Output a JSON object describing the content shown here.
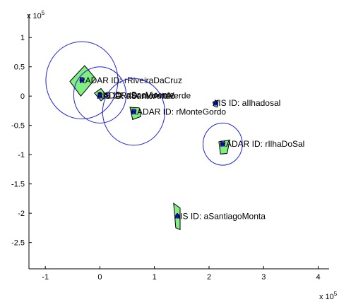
{
  "chart_data": {
    "type": "scatter",
    "xlim": [
      -1.3,
      4.2
    ],
    "ylim": [
      -2.95,
      1.4
    ],
    "x_ticks": [
      -1,
      0,
      1,
      2,
      3,
      4
    ],
    "y_ticks": [
      1,
      0.5,
      0,
      -0.5,
      -1,
      -1.5,
      -2,
      -2.5
    ],
    "x_tick_labels": [
      "-1",
      "0",
      "1",
      "2",
      "3",
      "4"
    ],
    "y_tick_labels": [
      "1",
      "0.5",
      "0",
      "-0.5",
      "-1",
      "-1.5",
      "-2",
      "-2.5"
    ],
    "x_exponent_label": "x 10",
    "x_exponent_power": "5",
    "y_exponent_label": "x 10",
    "y_exponent_power": "5",
    "grid": false,
    "colors": {
      "coverage_circle": "#2222dd",
      "sector_fill": "#80ee80",
      "sector_stroke": "#000000",
      "point": "#1a1aee"
    },
    "stations": [
      {
        "label": "RADAR ID: rRiveiraDaCruz",
        "x": -0.33,
        "y": 0.27,
        "radius": 0.66,
        "polygon": [
          [
            -0.55,
            0.25
          ],
          [
            -0.28,
            0.52
          ],
          [
            -0.08,
            0.3
          ],
          [
            -0.35,
            0.0
          ]
        ]
      },
      {
        "label": "AIS ID: aSaoVicente",
        "x": 0.0,
        "y": 0.02,
        "radius": 0.48,
        "polygon": [
          [
            -0.1,
            0.05
          ],
          [
            0.02,
            0.13
          ],
          [
            0.13,
            0.0
          ],
          [
            0.02,
            -0.08
          ]
        ]
      },
      {
        "label": "RADAR ID: rMonteVerde",
        "x": 0.0,
        "y": 0.01,
        "radius": 0.0,
        "polygon": []
      },
      {
        "label": "AIS ID: aSantoAntao",
        "x": 0.0,
        "y": 0.0,
        "radius": 0.0,
        "polygon": []
      },
      {
        "label": "RADAR ID: rMonteGordo",
        "x": 0.62,
        "y": -0.27,
        "radius": 0.57,
        "polygon": [
          [
            0.55,
            -0.19
          ],
          [
            0.72,
            -0.2
          ],
          [
            0.75,
            -0.35
          ],
          [
            0.6,
            -0.4
          ]
        ]
      },
      {
        "label": "AIS ID: aIlhadosal",
        "x": 2.12,
        "y": -0.12,
        "radius": 0.0,
        "polygon": [
          [
            2.07,
            -0.1
          ],
          [
            2.17,
            -0.07
          ],
          [
            2.15,
            -0.19
          ],
          [
            2.09,
            -0.17
          ]
        ]
      },
      {
        "label": "RADAR ID: rIlhaDoSal",
        "x": 2.25,
        "y": -0.82,
        "radius": 0.36,
        "polygon": [
          [
            2.18,
            -0.78
          ],
          [
            2.38,
            -0.75
          ],
          [
            2.33,
            -0.98
          ],
          [
            2.21,
            -0.99
          ]
        ]
      },
      {
        "label": "AIS ID: aSantiagoMonta",
        "x": 1.42,
        "y": -2.05,
        "radius": 0.0,
        "polygon": [
          [
            1.35,
            -1.83
          ],
          [
            1.47,
            -1.91
          ],
          [
            1.47,
            -2.28
          ],
          [
            1.39,
            -2.25
          ]
        ]
      }
    ]
  }
}
